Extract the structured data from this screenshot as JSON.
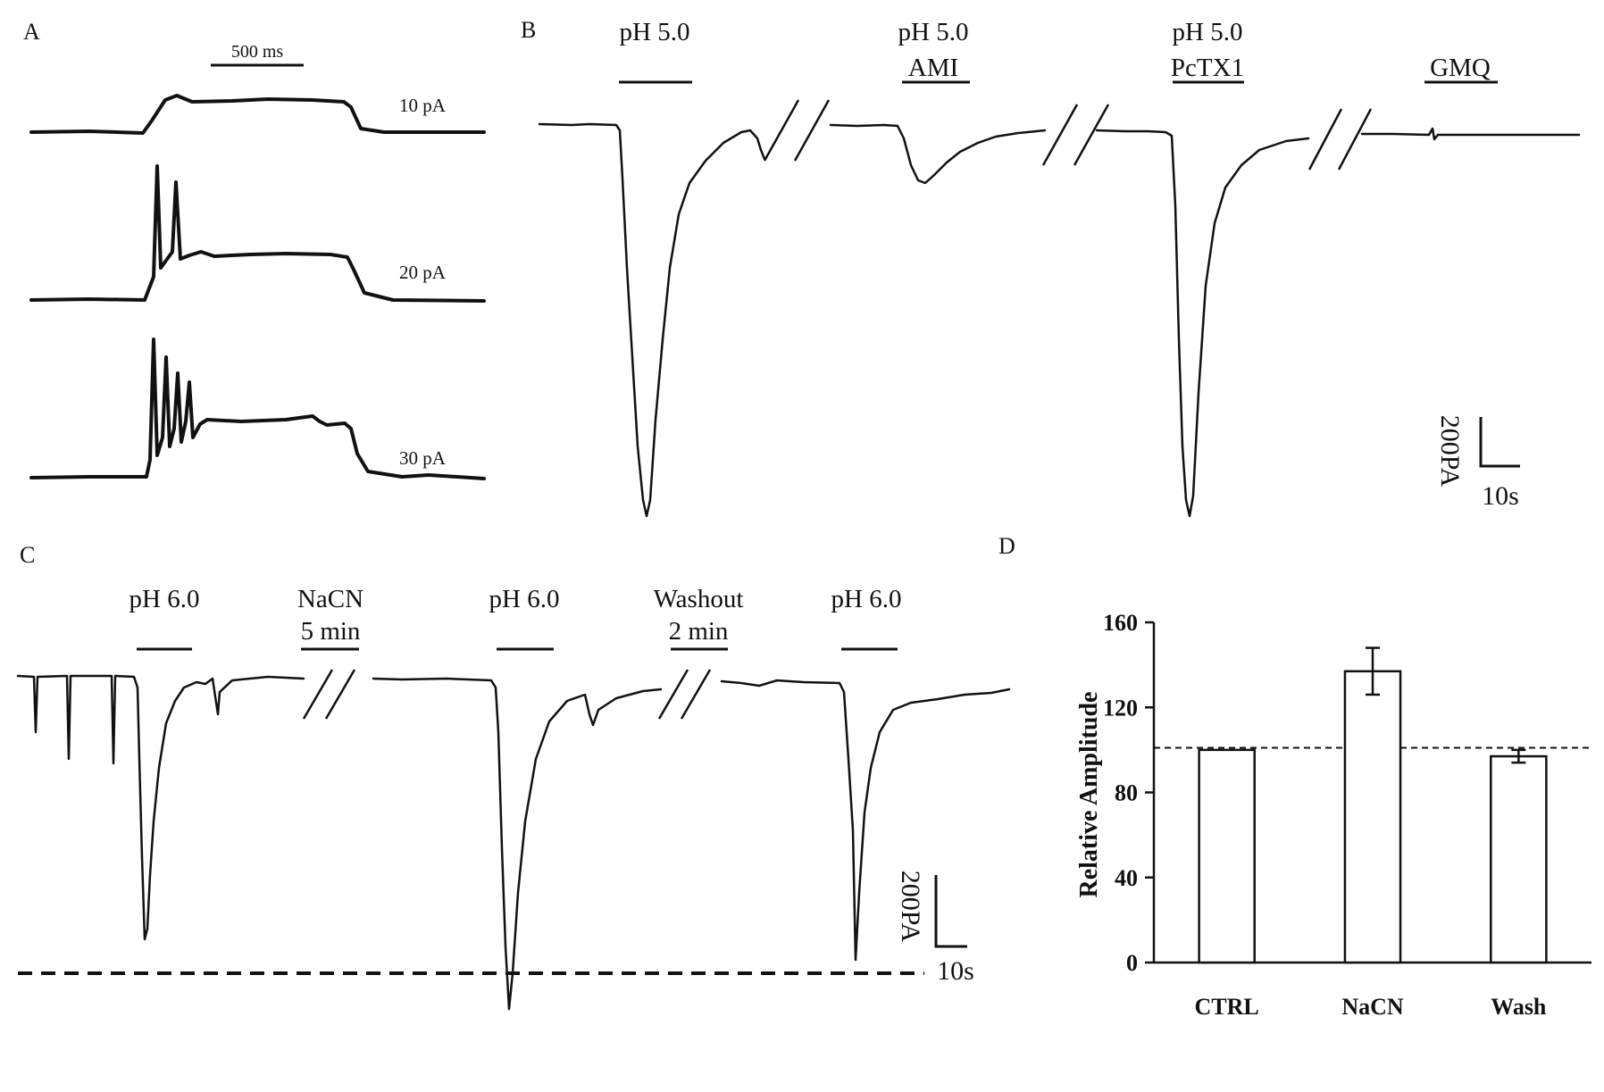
{
  "panels": {
    "A": {
      "label": "A",
      "scale_bar": "500 ms",
      "traces": [
        {
          "label": "10 pA"
        },
        {
          "label": "20 pA"
        },
        {
          "label": "30 pA"
        }
      ]
    },
    "B": {
      "label": "B",
      "segments": [
        {
          "line1": "pH 5.0",
          "line2": ""
        },
        {
          "line1": "pH 5.0",
          "line2": "AMI"
        },
        {
          "line1": "pH 5.0",
          "line2": "PcTX1"
        },
        {
          "line1": "",
          "line2": "GMQ"
        }
      ],
      "scale_y": "200PA",
      "scale_x": "10s"
    },
    "C": {
      "label": "C",
      "labels": [
        {
          "line1": "pH 6.0",
          "line2": ""
        },
        {
          "line1": "NaCN",
          "line2": "5 min"
        },
        {
          "line1": "pH 6.0",
          "line2": ""
        },
        {
          "line1": "Washout",
          "line2": "2 min"
        },
        {
          "line1": "pH 6.0",
          "line2": ""
        }
      ],
      "scale_y": "200PA",
      "scale_x": "10s"
    },
    "D": {
      "label": "D"
    }
  },
  "chart_data": {
    "type": "bar",
    "categories": [
      "CTRL",
      "NaCN",
      "Wash"
    ],
    "values": [
      100,
      137,
      97
    ],
    "errors": [
      0,
      11,
      3
    ],
    "reference_line": 101,
    "ylabel": "Relative Amplitude",
    "ylim": [
      0,
      160
    ],
    "yticks": [
      "0",
      "40",
      "80",
      "120",
      "160"
    ]
  }
}
